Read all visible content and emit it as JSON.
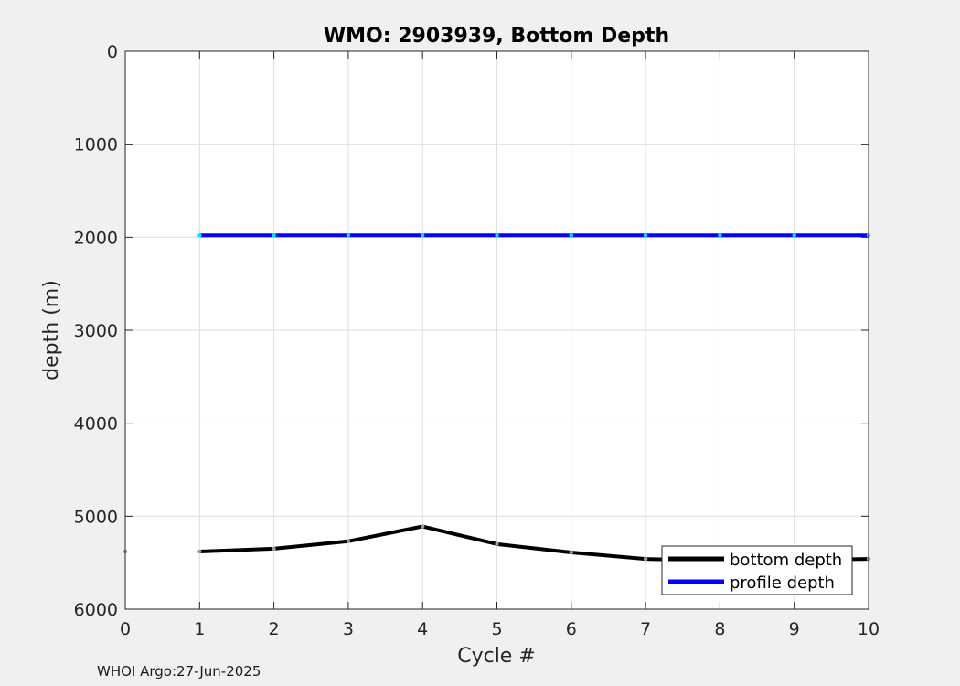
{
  "chart_data": {
    "type": "line",
    "title": "WMO: 2903939, Bottom Depth",
    "xlabel": "Cycle #",
    "ylabel": "depth (m)",
    "xlim": [
      0,
      10
    ],
    "ylim": [
      0,
      6000
    ],
    "y_reversed": true,
    "grid": true,
    "xticks": [
      "0",
      "1",
      "2",
      "3",
      "4",
      "5",
      "6",
      "7",
      "8",
      "9",
      "10"
    ],
    "yticks": [
      "0",
      "1000",
      "2000",
      "3000",
      "4000",
      "5000",
      "6000"
    ],
    "legend_position": "bottom-right",
    "series": [
      {
        "name": "bottom depth",
        "color": "#000000",
        "marker_color": "#999999",
        "x": [
          1,
          2,
          3,
          4,
          5,
          6,
          7,
          8,
          9,
          10
        ],
        "y": [
          5380,
          5350,
          5270,
          5110,
          5300,
          5390,
          5460,
          5480,
          5470,
          5460
        ]
      },
      {
        "name": "profile depth",
        "color": "#0000ff",
        "marker_color": "#00e5ff",
        "x": [
          1,
          2,
          3,
          4,
          5,
          6,
          7,
          8,
          9,
          10
        ],
        "y": [
          1980,
          1980,
          1980,
          1980,
          1980,
          1980,
          1980,
          1980,
          1980,
          1980
        ]
      }
    ],
    "extra_points": [
      {
        "x": 0,
        "y": 5380,
        "color": "#999999"
      }
    ]
  },
  "footer": "WHOI Argo:27-Jun-2025"
}
